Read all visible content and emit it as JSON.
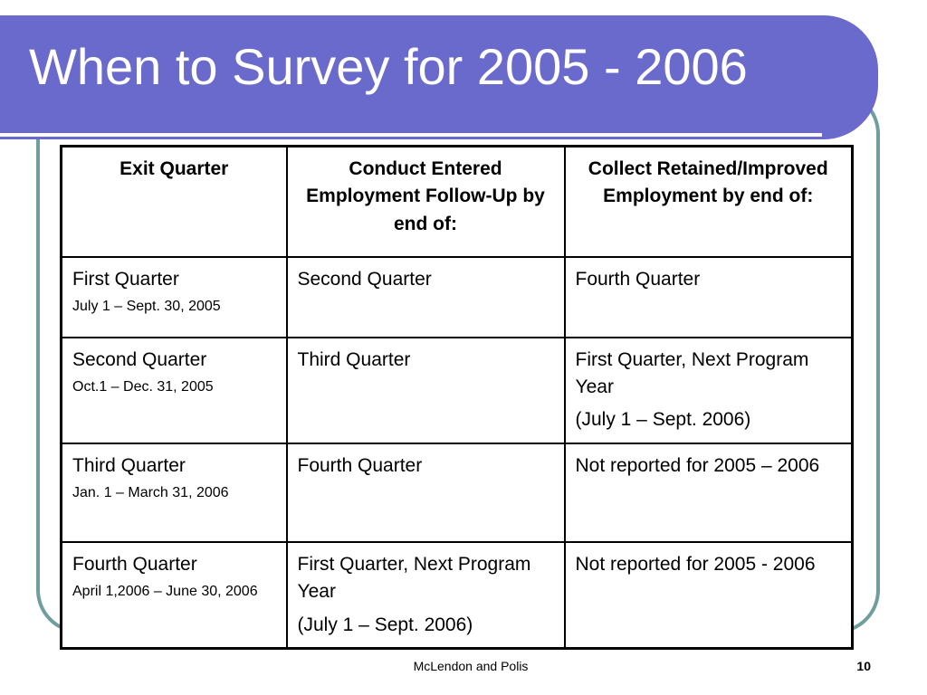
{
  "slide": {
    "title": "When to Survey for 2005 - 2006",
    "footer_author": "McLendon and Polis",
    "page_number": "10"
  },
  "table": {
    "headers": [
      "Exit Quarter",
      "Conduct Entered Employment Follow-Up by end of:",
      "Collect Retained/Improved Employment by end of:"
    ],
    "rows": [
      {
        "exit_quarter": "First Quarter",
        "exit_dates": "July 1 – Sept. 30, 2005",
        "entered": "Second Quarter",
        "entered_extra": "",
        "retained": "Fourth Quarter",
        "retained_extra": ""
      },
      {
        "exit_quarter": "Second Quarter",
        "exit_dates": "Oct.1 – Dec. 31, 2005",
        "entered": "Third Quarter",
        "entered_extra": "",
        "retained": "First Quarter, Next Program Year",
        "retained_extra": "(July 1 – Sept. 2006)"
      },
      {
        "exit_quarter": "Third Quarter",
        "exit_dates": "Jan. 1 – March 31, 2006",
        "entered": "Fourth Quarter",
        "entered_extra": "",
        "retained": "Not reported for 2005 – 2006",
        "retained_extra": ""
      },
      {
        "exit_quarter": "Fourth Quarter",
        "exit_dates": "April 1,2006 – June 30, 2006",
        "entered": "First Quarter, Next Program Year",
        "entered_extra": "(July 1 – Sept. 2006)",
        "retained": "Not reported for 2005 - 2006",
        "retained_extra": ""
      }
    ]
  },
  "colors": {
    "title_band": "#6a6acc",
    "frame_border": "#6e9e9e",
    "title_text": "#ffffff"
  }
}
